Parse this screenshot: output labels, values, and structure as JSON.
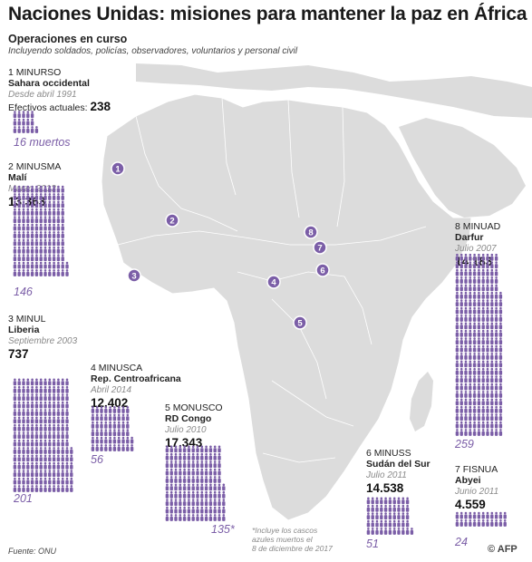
{
  "title": "Naciones Unidas: misiones para mantener la paz en África",
  "subtitle": "Operaciones en curso",
  "subnote": "Incluyendo soldados, policías, observadores, voluntarios y personal civil",
  "source": "Fuente: ONU",
  "credit": "© AFP",
  "footnote": [
    "*Incluye los cascos",
    "azules muertos el",
    "8 de diciembre de 2017"
  ],
  "colors": {
    "accent": "#7b5ea7",
    "map": "#dcdcdc",
    "marker_bg": "#7b5ea7"
  },
  "labels": {
    "current_staff": "Efectivos actuales:"
  },
  "chart_data": {
    "type": "pictogram-map",
    "title": "Naciones Unidas: misiones para mantener la paz en África",
    "series": [
      {
        "num": "1",
        "mission": "MINURSO",
        "place": "Sahara occidental",
        "since": "Desde abril 1991",
        "staff": "238",
        "deaths": "16 muertos"
      },
      {
        "num": "2",
        "mission": "MINUSMA",
        "place": "Malí",
        "since": "Marzo 2013",
        "staff": "13.363",
        "deaths": "146"
      },
      {
        "num": "3",
        "mission": "MINUL",
        "place": "Liberia",
        "since": "Septiembre 2003",
        "staff": "737",
        "deaths": "201"
      },
      {
        "num": "4",
        "mission": "MINUSCA",
        "place": "Rep. Centroafricana",
        "since": "Abril 2014",
        "staff": "12.402",
        "deaths": "56"
      },
      {
        "num": "5",
        "mission": "MONUSCO",
        "place": "RD Congo",
        "since": "Julio 2010",
        "staff": "17.343",
        "deaths": "135*"
      },
      {
        "num": "6",
        "mission": "MINUSS",
        "place": "Sudán del Sur",
        "since": "Julio 2011",
        "staff": "14.538",
        "deaths": "51"
      },
      {
        "num": "7",
        "mission": "FISNUA",
        "place": "Abyei",
        "since": "Junio 2011",
        "staff": "4.559",
        "deaths": "24"
      },
      {
        "num": "8",
        "mission": "MINUAD",
        "place": "Darfur",
        "since": "Julio 2007",
        "staff": "14.183",
        "deaths": "259"
      }
    ],
    "deaths_values": [
      16,
      146,
      201,
      56,
      135,
      51,
      24,
      259
    ]
  }
}
